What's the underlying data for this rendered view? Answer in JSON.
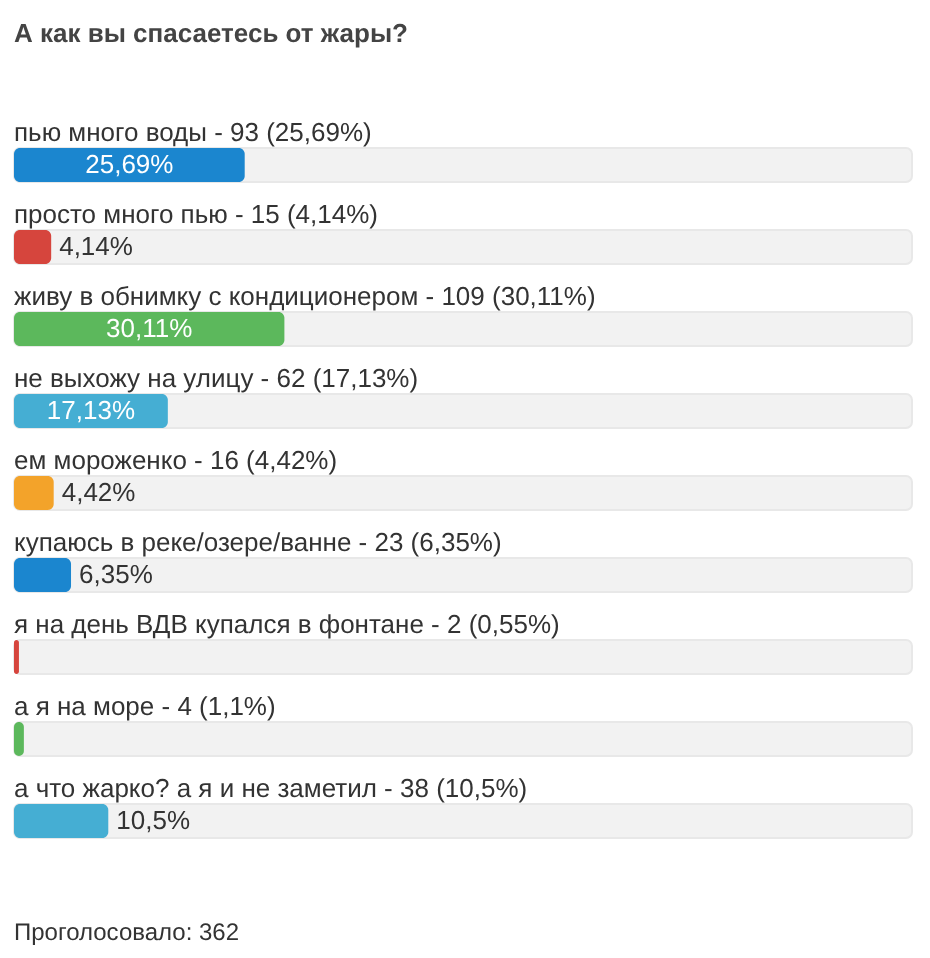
{
  "chart_data": {
    "type": "bar",
    "orientation": "horizontal",
    "title": "А как вы спасаетесь от жары?",
    "categories": [
      "пью много воды - 93 (25,69%)",
      "просто много пью - 15 (4,14%)",
      "живу в обнимку с кондиционером - 109 (30,11%)",
      "не выхожу на улицу - 62 (17,13%)",
      "ем мороженко - 16 (4,42%)",
      "купаюсь в реке/озере/ванне - 23 (6,35%)",
      "я на день ВДВ купался в фонтане - 2 (0,55%)",
      "а я на море - 4 (1,1%)",
      "а что жарко? а я и не заметил - 38 (10,5%)"
    ],
    "values": [
      25.69,
      4.14,
      30.11,
      17.13,
      4.42,
      6.35,
      0.55,
      1.1,
      10.5
    ],
    "value_labels": [
      "25,69%",
      "4,14%",
      "30,11%",
      "17,13%",
      "4,42%",
      "6,35%",
      null,
      null,
      "10,5%"
    ],
    "colors": [
      "#1b86cf",
      "#d6453d",
      "#5cb85c",
      "#45aed3",
      "#f3a32a",
      "#1b86cf",
      "#d6453d",
      "#5cb85c",
      "#45aed3"
    ],
    "xlim": [
      0,
      100
    ],
    "tick_labels": false,
    "annotations": [
      "Проголосовало: 362"
    ]
  }
}
